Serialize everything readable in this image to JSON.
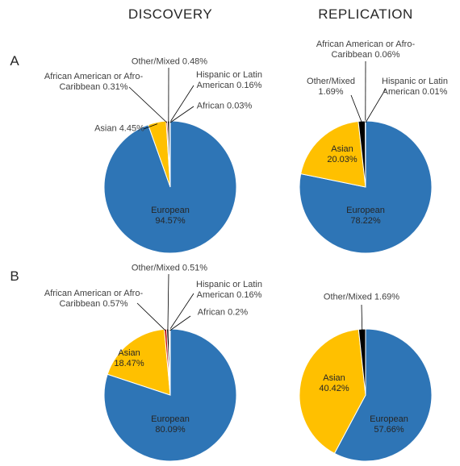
{
  "columns": [
    "DISCOVERY",
    "REPLICATION"
  ],
  "rows": [
    "A",
    "B"
  ],
  "chart_data": [
    {
      "type": "pie",
      "categories": [
        "European",
        "Asian",
        "African American or Afro-Caribbean",
        "Other/Mixed",
        "Hispanic or Latin American",
        "African"
      ],
      "values": [
        94.57,
        4.45,
        0.31,
        0.48,
        0.16,
        0.03
      ],
      "value_labels": [
        "94.57%",
        "4.45%",
        "0.31%",
        "0.48%",
        "0.16%",
        "0.03%"
      ],
      "colors": [
        "#2e75b6",
        "#ffc000",
        "#c00000",
        "#000000",
        "#7f7f7f",
        "#70ad47"
      ]
    },
    {
      "type": "pie",
      "categories": [
        "European",
        "Asian",
        "Other/Mixed",
        "African American or Afro-Caribbean",
        "Hispanic or Latin American"
      ],
      "values": [
        78.22,
        20.03,
        1.69,
        0.06,
        0.01
      ],
      "value_labels": [
        "78.22%",
        "20.03%",
        "1.69%",
        "0.06%",
        "0.01%"
      ],
      "colors": [
        "#2e75b6",
        "#ffc000",
        "#000000",
        "#c00000",
        "#7f7f7f"
      ]
    },
    {
      "type": "pie",
      "categories": [
        "European",
        "Asian",
        "African American or Afro-Caribbean",
        "Other/Mixed",
        "Hispanic or Latin American",
        "African"
      ],
      "values": [
        80.09,
        18.47,
        0.57,
        0.51,
        0.16,
        0.2
      ],
      "value_labels": [
        "80.09%",
        "18.47%",
        "0.57%",
        "0.51%",
        "0.16%",
        "0.2%"
      ],
      "colors": [
        "#2e75b6",
        "#ffc000",
        "#c00000",
        "#000000",
        "#7f7f7f",
        "#70ad47"
      ]
    },
    {
      "type": "pie",
      "categories": [
        "European",
        "Asian",
        "Other/Mixed"
      ],
      "values": [
        57.66,
        40.42,
        1.69
      ],
      "value_labels": [
        "57.66%",
        "40.42%",
        "1.69%"
      ],
      "colors": [
        "#2e75b6",
        "#ffc000",
        "#000000"
      ]
    }
  ]
}
